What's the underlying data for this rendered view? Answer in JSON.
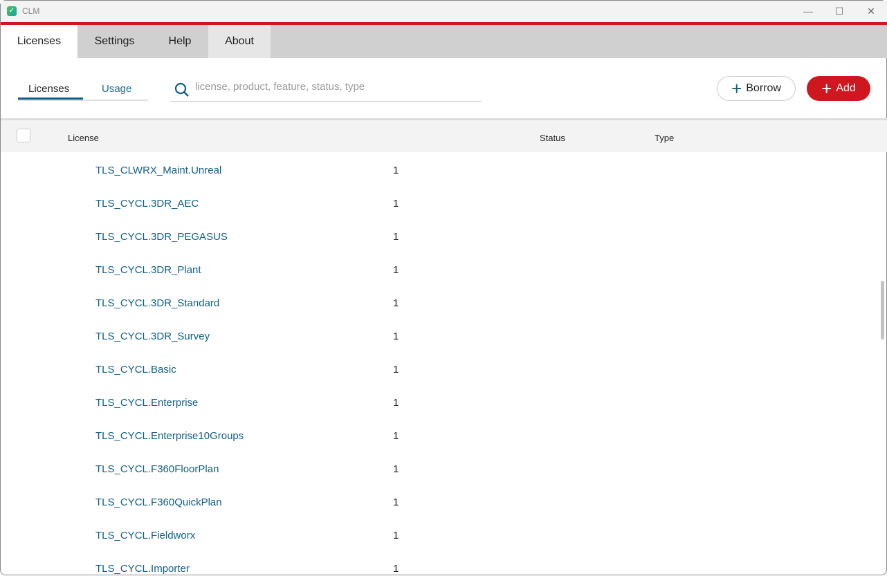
{
  "window": {
    "title": "CLM"
  },
  "menu": {
    "tabs": [
      {
        "label": "Licenses"
      },
      {
        "label": "Settings"
      },
      {
        "label": "Help"
      },
      {
        "label": "About"
      }
    ]
  },
  "subtabs": [
    {
      "label": "Licenses"
    },
    {
      "label": "Usage"
    }
  ],
  "search": {
    "placeholder": "license, product, feature, status, type",
    "value": ""
  },
  "buttons": {
    "borrow": "Borrow",
    "add": "Add"
  },
  "colors": {
    "accent": "#d0161e",
    "link": "#0f5e86"
  },
  "table": {
    "columns": [
      "License",
      "Status",
      "Type"
    ],
    "rows": [
      {
        "license": "TLS_CLWRX_Maint.Unreal",
        "count": "1"
      },
      {
        "license": "TLS_CYCL.3DR_AEC",
        "count": "1"
      },
      {
        "license": "TLS_CYCL.3DR_PEGASUS",
        "count": "1"
      },
      {
        "license": "TLS_CYCL.3DR_Plant",
        "count": "1"
      },
      {
        "license": "TLS_CYCL.3DR_Standard",
        "count": "1"
      },
      {
        "license": "TLS_CYCL.3DR_Survey",
        "count": "1"
      },
      {
        "license": "TLS_CYCL.Basic",
        "count": "1"
      },
      {
        "license": "TLS_CYCL.Enterprise",
        "count": "1"
      },
      {
        "license": "TLS_CYCL.Enterprise10Groups",
        "count": "1"
      },
      {
        "license": "TLS_CYCL.F360FloorPlan",
        "count": "1"
      },
      {
        "license": "TLS_CYCL.F360QuickPlan",
        "count": "1"
      },
      {
        "license": "TLS_CYCL.Fieldworx",
        "count": "1"
      },
      {
        "license": "TLS_CYCL.Importer",
        "count": "1"
      }
    ]
  }
}
